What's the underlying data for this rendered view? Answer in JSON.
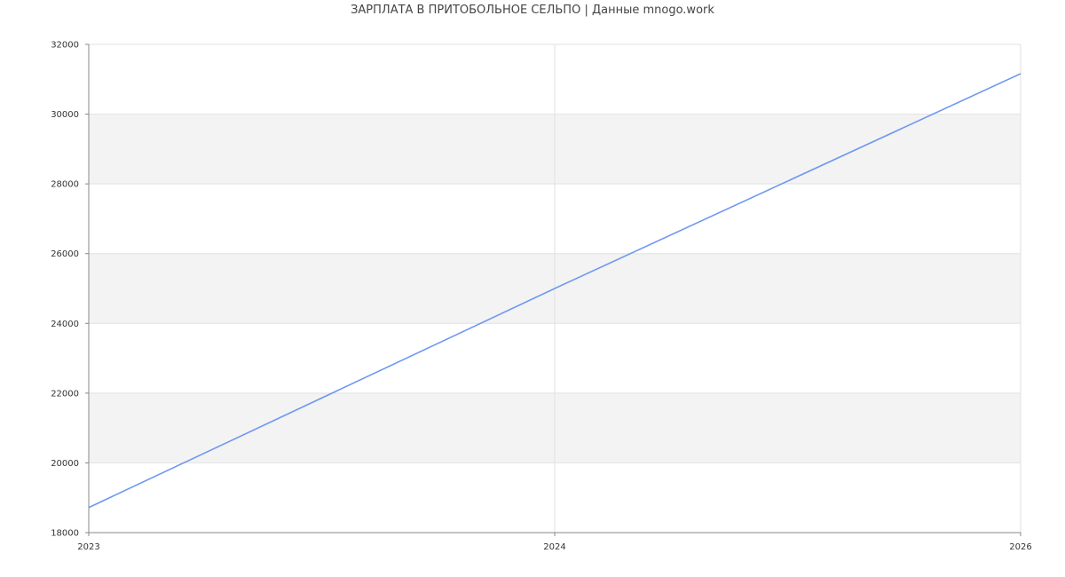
{
  "chart_data": {
    "type": "line",
    "title": "ЗАРПЛАТА В ПРИТОБОЛЬНОЕ СЕЛЬПО | Данные mnogo.work",
    "categories": [
      "2023",
      "2024",
      "2026"
    ],
    "series": [
      {
        "values": [
          18720,
          25000,
          31160
        ]
      }
    ],
    "xlabel": "",
    "ylabel": "",
    "ylim": [
      18000,
      32000
    ],
    "yticks": [
      18000,
      20000,
      22000,
      24000,
      26000,
      28000,
      30000,
      32000
    ],
    "grid": true,
    "legend": "none",
    "colors": {
      "line": "#7098f0",
      "band": "#f3f3f3",
      "grid": "#e2e2e2",
      "axis": "#888888"
    }
  }
}
